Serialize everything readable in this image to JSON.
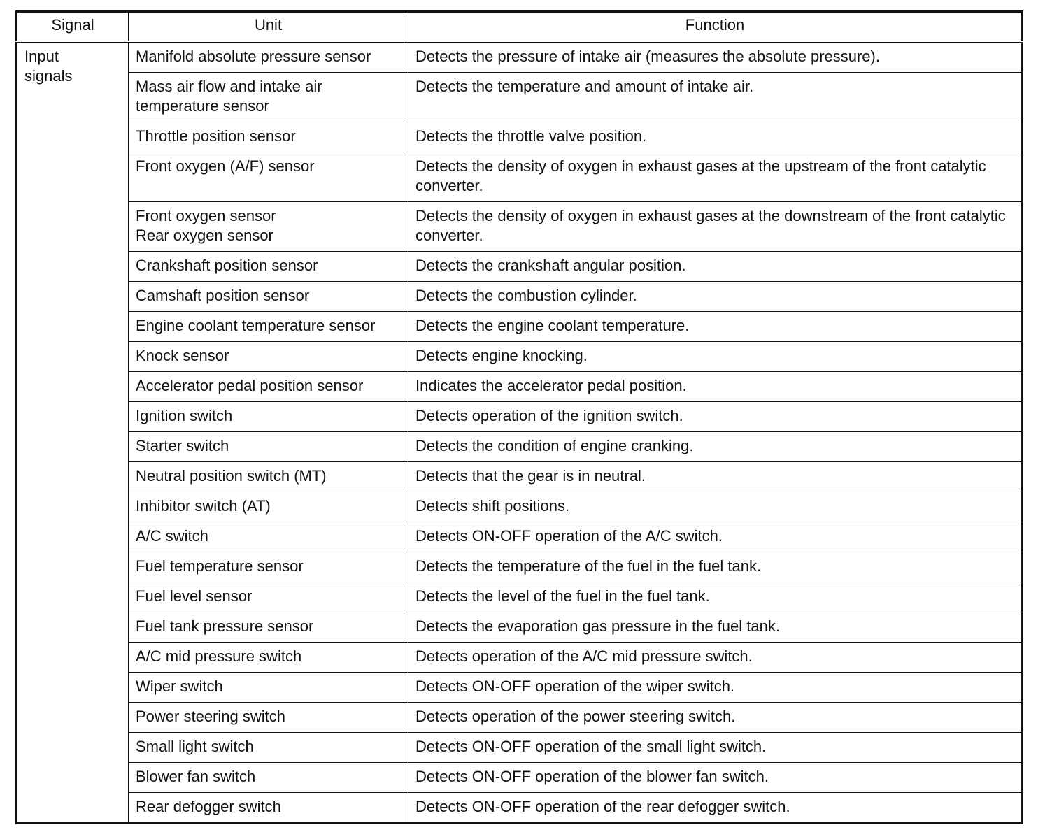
{
  "table": {
    "header": [
      "Signal",
      "Unit",
      "Function"
    ],
    "signal": "Input signals",
    "rows": [
      [
        "Manifold absolute pressure sensor",
        "Detects the pressure of intake air (measures the absolute pressure)."
      ],
      [
        "Mass air flow and intake air temperature sensor",
        "Detects the temperature and amount of intake air."
      ],
      [
        "Throttle position sensor",
        "Detects the throttle valve position."
      ],
      [
        "Front oxygen (A/F) sensor",
        "Detects the density of oxygen in exhaust gases at the upstream of the front catalytic converter."
      ],
      [
        "Front oxygen sensor\nRear oxygen sensor",
        "Detects the density of oxygen in exhaust gases at the downstream of the front catalytic converter."
      ],
      [
        "Crankshaft position sensor",
        "Detects the crankshaft angular position."
      ],
      [
        "Camshaft position sensor",
        "Detects the combustion cylinder."
      ],
      [
        "Engine coolant temperature sensor",
        "Detects the engine coolant temperature."
      ],
      [
        "Knock sensor",
        "Detects engine knocking."
      ],
      [
        "Accelerator pedal position sensor",
        "Indicates the accelerator pedal position."
      ],
      [
        "Ignition switch",
        "Detects operation of the ignition switch."
      ],
      [
        "Starter switch",
        "Detects the condition of engine cranking."
      ],
      [
        "Neutral position switch (MT)",
        "Detects that the gear is in neutral."
      ],
      [
        "Inhibitor switch (AT)",
        "Detects shift positions."
      ],
      [
        "A/C switch",
        "Detects ON-OFF operation of the A/C switch."
      ],
      [
        "Fuel temperature sensor",
        "Detects the temperature of the fuel in the fuel tank."
      ],
      [
        "Fuel level sensor",
        "Detects the level of the fuel in the fuel tank."
      ],
      [
        "Fuel tank pressure sensor",
        "Detects the evaporation gas pressure in the fuel tank."
      ],
      [
        "A/C mid pressure switch",
        "Detects operation of the A/C mid pressure switch."
      ],
      [
        "Wiper switch",
        "Detects ON-OFF operation of the wiper switch."
      ],
      [
        "Power steering switch",
        "Detects operation of the power steering switch."
      ],
      [
        "Small light switch",
        "Detects ON-OFF operation of the small light switch."
      ],
      [
        "Blower fan switch",
        "Detects ON-OFF operation of the blower fan switch."
      ],
      [
        "Rear defogger switch",
        "Detects ON-OFF operation of the rear defogger switch."
      ]
    ]
  }
}
